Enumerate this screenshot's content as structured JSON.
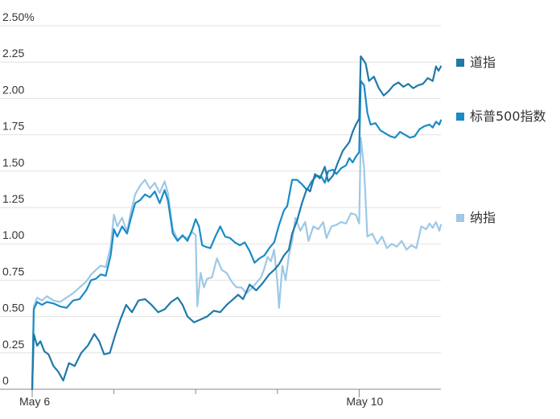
{
  "chart_data": {
    "type": "line",
    "ylim": [
      0,
      2.5
    ],
    "y_ticks": [
      {
        "value": 0,
        "label": "0"
      },
      {
        "value": 0.25,
        "label": "0.25"
      },
      {
        "value": 0.5,
        "label": "0.50"
      },
      {
        "value": 0.75,
        "label": "0.75"
      },
      {
        "value": 1.0,
        "label": "1.00"
      },
      {
        "value": 1.25,
        "label": "1.25"
      },
      {
        "value": 1.5,
        "label": "1.50"
      },
      {
        "value": 1.75,
        "label": "1.75"
      },
      {
        "value": 2.0,
        "label": "2.00"
      },
      {
        "value": 2.25,
        "label": "2.25"
      },
      {
        "value": 2.5,
        "label": "2.50%"
      }
    ],
    "x_axis": {
      "range": [
        0,
        5
      ],
      "labeled_ticks": [
        {
          "value": 0,
          "label": "May 6"
        },
        {
          "value": 4,
          "label": "May 10"
        }
      ],
      "minor_ticks": [
        1,
        2,
        3
      ]
    },
    "grid": "horizontal",
    "legend_position": "right",
    "series": [
      {
        "name": "道指",
        "color": "#1f7aa8",
        "points": [
          [
            0.0,
            0.0
          ],
          [
            0.02,
            0.38
          ],
          [
            0.06,
            0.3
          ],
          [
            0.1,
            0.33
          ],
          [
            0.15,
            0.26
          ],
          [
            0.2,
            0.24
          ],
          [
            0.26,
            0.16
          ],
          [
            0.32,
            0.12
          ],
          [
            0.38,
            0.06
          ],
          [
            0.45,
            0.18
          ],
          [
            0.52,
            0.16
          ],
          [
            0.6,
            0.25
          ],
          [
            0.68,
            0.3
          ],
          [
            0.76,
            0.38
          ],
          [
            0.82,
            0.33
          ],
          [
            0.88,
            0.24
          ],
          [
            0.95,
            0.25
          ],
          [
            1.02,
            0.38
          ],
          [
            1.08,
            0.48
          ],
          [
            1.15,
            0.58
          ],
          [
            1.22,
            0.53
          ],
          [
            1.3,
            0.61
          ],
          [
            1.38,
            0.62
          ],
          [
            1.46,
            0.58
          ],
          [
            1.54,
            0.53
          ],
          [
            1.62,
            0.55
          ],
          [
            1.7,
            0.6
          ],
          [
            1.78,
            0.63
          ],
          [
            1.84,
            0.58
          ],
          [
            1.9,
            0.5
          ],
          [
            1.98,
            0.46
          ],
          [
            2.06,
            0.48
          ],
          [
            2.14,
            0.5
          ],
          [
            2.22,
            0.54
          ],
          [
            2.3,
            0.53
          ],
          [
            2.38,
            0.58
          ],
          [
            2.46,
            0.62
          ],
          [
            2.52,
            0.65
          ],
          [
            2.58,
            0.62
          ],
          [
            2.66,
            0.72
          ],
          [
            2.74,
            0.68
          ],
          [
            2.82,
            0.73
          ],
          [
            2.9,
            0.79
          ],
          [
            2.96,
            0.82
          ],
          [
            3.02,
            0.86
          ],
          [
            3.08,
            0.92
          ],
          [
            3.14,
            0.96
          ],
          [
            3.18,
            1.07
          ],
          [
            3.24,
            1.16
          ],
          [
            3.3,
            1.28
          ],
          [
            3.36,
            1.38
          ],
          [
            3.4,
            1.36
          ],
          [
            3.46,
            1.48
          ],
          [
            3.52,
            1.45
          ],
          [
            3.58,
            1.53
          ],
          [
            3.62,
            1.43
          ],
          [
            3.68,
            1.47
          ],
          [
            3.74,
            1.56
          ],
          [
            3.8,
            1.64
          ],
          [
            3.88,
            1.7
          ],
          [
            3.92,
            1.77
          ],
          [
            3.96,
            1.82
          ],
          [
            4.0,
            1.86
          ],
          [
            4.02,
            2.29
          ],
          [
            4.08,
            2.24
          ],
          [
            4.12,
            2.12
          ],
          [
            4.18,
            2.15
          ],
          [
            4.24,
            2.07
          ],
          [
            4.3,
            2.02
          ],
          [
            4.36,
            2.05
          ],
          [
            4.42,
            2.09
          ],
          [
            4.48,
            2.11
          ],
          [
            4.54,
            2.08
          ],
          [
            4.6,
            2.1
          ],
          [
            4.66,
            2.07
          ],
          [
            4.72,
            2.09
          ],
          [
            4.78,
            2.1
          ],
          [
            4.84,
            2.14
          ],
          [
            4.9,
            2.12
          ],
          [
            4.94,
            2.22
          ],
          [
            4.97,
            2.19
          ],
          [
            5.0,
            2.22
          ]
        ]
      },
      {
        "name": "标普500指数",
        "color": "#1a8bc7",
        "points": [
          [
            0.0,
            0.0
          ],
          [
            0.02,
            0.55
          ],
          [
            0.06,
            0.6
          ],
          [
            0.12,
            0.58
          ],
          [
            0.18,
            0.6
          ],
          [
            0.26,
            0.59
          ],
          [
            0.34,
            0.57
          ],
          [
            0.42,
            0.56
          ],
          [
            0.5,
            0.61
          ],
          [
            0.58,
            0.62
          ],
          [
            0.66,
            0.68
          ],
          [
            0.72,
            0.75
          ],
          [
            0.78,
            0.76
          ],
          [
            0.84,
            0.79
          ],
          [
            0.9,
            0.78
          ],
          [
            0.96,
            0.92
          ],
          [
            1.0,
            1.1
          ],
          [
            1.04,
            1.05
          ],
          [
            1.1,
            1.12
          ],
          [
            1.16,
            1.07
          ],
          [
            1.2,
            1.16
          ],
          [
            1.26,
            1.28
          ],
          [
            1.32,
            1.3
          ],
          [
            1.38,
            1.34
          ],
          [
            1.44,
            1.32
          ],
          [
            1.5,
            1.36
          ],
          [
            1.56,
            1.28
          ],
          [
            1.62,
            1.37
          ],
          [
            1.66,
            1.3
          ],
          [
            1.72,
            1.07
          ],
          [
            1.78,
            1.02
          ],
          [
            1.84,
            1.06
          ],
          [
            1.9,
            1.02
          ],
          [
            1.96,
            1.1
          ],
          [
            2.0,
            1.17
          ],
          [
            2.04,
            1.12
          ],
          [
            2.08,
            0.99
          ],
          [
            2.12,
            0.98
          ],
          [
            2.18,
            0.97
          ],
          [
            2.24,
            1.05
          ],
          [
            2.3,
            1.12
          ],
          [
            2.36,
            1.05
          ],
          [
            2.42,
            1.04
          ],
          [
            2.48,
            1.01
          ],
          [
            2.54,
            0.99
          ],
          [
            2.6,
            1.01
          ],
          [
            2.66,
            0.95
          ],
          [
            2.72,
            0.87
          ],
          [
            2.78,
            0.9
          ],
          [
            2.84,
            0.92
          ],
          [
            2.9,
            0.97
          ],
          [
            2.96,
            1.01
          ],
          [
            3.02,
            1.13
          ],
          [
            3.08,
            1.23
          ],
          [
            3.12,
            1.26
          ],
          [
            3.18,
            1.44
          ],
          [
            3.24,
            1.44
          ],
          [
            3.3,
            1.41
          ],
          [
            3.36,
            1.37
          ],
          [
            3.42,
            1.43
          ],
          [
            3.48,
            1.47
          ],
          [
            3.54,
            1.46
          ],
          [
            3.58,
            1.42
          ],
          [
            3.62,
            1.5
          ],
          [
            3.68,
            1.51
          ],
          [
            3.72,
            1.48
          ],
          [
            3.78,
            1.52
          ],
          [
            3.84,
            1.54
          ],
          [
            3.88,
            1.59
          ],
          [
            3.92,
            1.56
          ],
          [
            3.96,
            1.6
          ],
          [
            4.0,
            1.63
          ],
          [
            4.02,
            2.12
          ],
          [
            4.06,
            2.09
          ],
          [
            4.1,
            1.9
          ],
          [
            4.14,
            1.82
          ],
          [
            4.2,
            1.83
          ],
          [
            4.26,
            1.78
          ],
          [
            4.32,
            1.76
          ],
          [
            4.38,
            1.74
          ],
          [
            4.44,
            1.73
          ],
          [
            4.5,
            1.77
          ],
          [
            4.56,
            1.75
          ],
          [
            4.62,
            1.73
          ],
          [
            4.68,
            1.74
          ],
          [
            4.74,
            1.79
          ],
          [
            4.8,
            1.81
          ],
          [
            4.86,
            1.82
          ],
          [
            4.9,
            1.8
          ],
          [
            4.94,
            1.84
          ],
          [
            4.98,
            1.82
          ],
          [
            5.0,
            1.85
          ]
        ]
      },
      {
        "name": "纳指",
        "color": "#9ec8e6",
        "points": [
          [
            0.0,
            0.0
          ],
          [
            0.02,
            0.57
          ],
          [
            0.06,
            0.63
          ],
          [
            0.12,
            0.61
          ],
          [
            0.18,
            0.64
          ],
          [
            0.26,
            0.61
          ],
          [
            0.34,
            0.6
          ],
          [
            0.42,
            0.63
          ],
          [
            0.5,
            0.66
          ],
          [
            0.58,
            0.7
          ],
          [
            0.66,
            0.74
          ],
          [
            0.72,
            0.79
          ],
          [
            0.78,
            0.82
          ],
          [
            0.84,
            0.85
          ],
          [
            0.9,
            0.84
          ],
          [
            0.96,
            0.98
          ],
          [
            1.0,
            1.2
          ],
          [
            1.04,
            1.12
          ],
          [
            1.1,
            1.18
          ],
          [
            1.16,
            1.08
          ],
          [
            1.2,
            1.2
          ],
          [
            1.26,
            1.34
          ],
          [
            1.32,
            1.4
          ],
          [
            1.38,
            1.44
          ],
          [
            1.44,
            1.38
          ],
          [
            1.5,
            1.42
          ],
          [
            1.56,
            1.35
          ],
          [
            1.62,
            1.43
          ],
          [
            1.66,
            1.35
          ],
          [
            1.72,
            1.1
          ],
          [
            1.78,
            1.03
          ],
          [
            1.84,
            1.05
          ],
          [
            1.9,
            1.04
          ],
          [
            1.96,
            1.08
          ],
          [
            2.0,
            1.06
          ],
          [
            2.02,
            0.57
          ],
          [
            2.06,
            0.8
          ],
          [
            2.1,
            0.7
          ],
          [
            2.14,
            0.76
          ],
          [
            2.2,
            0.77
          ],
          [
            2.26,
            0.9
          ],
          [
            2.32,
            0.82
          ],
          [
            2.38,
            0.8
          ],
          [
            2.44,
            0.74
          ],
          [
            2.5,
            0.7
          ],
          [
            2.56,
            0.7
          ],
          [
            2.62,
            0.66
          ],
          [
            2.68,
            0.69
          ],
          [
            2.74,
            0.73
          ],
          [
            2.8,
            0.77
          ],
          [
            2.84,
            0.83
          ],
          [
            2.88,
            0.91
          ],
          [
            2.92,
            0.88
          ],
          [
            2.96,
            0.96
          ],
          [
            3.0,
            0.73
          ],
          [
            3.02,
            0.56
          ],
          [
            3.06,
            0.85
          ],
          [
            3.1,
            0.75
          ],
          [
            3.14,
            0.92
          ],
          [
            3.18,
            1.02
          ],
          [
            3.22,
            1.18
          ],
          [
            3.28,
            1.09
          ],
          [
            3.34,
            1.15
          ],
          [
            3.38,
            1.02
          ],
          [
            3.44,
            1.12
          ],
          [
            3.5,
            1.1
          ],
          [
            3.56,
            1.15
          ],
          [
            3.6,
            1.04
          ],
          [
            3.66,
            1.12
          ],
          [
            3.72,
            1.13
          ],
          [
            3.78,
            1.15
          ],
          [
            3.84,
            1.14
          ],
          [
            3.9,
            1.21
          ],
          [
            3.96,
            1.2
          ],
          [
            4.0,
            1.14
          ],
          [
            4.02,
            1.73
          ],
          [
            4.06,
            1.52
          ],
          [
            4.1,
            1.05
          ],
          [
            4.16,
            1.07
          ],
          [
            4.22,
            1.0
          ],
          [
            4.28,
            1.05
          ],
          [
            4.34,
            0.97
          ],
          [
            4.4,
            1.0
          ],
          [
            4.46,
            0.98
          ],
          [
            4.52,
            1.02
          ],
          [
            4.58,
            0.96
          ],
          [
            4.64,
            0.99
          ],
          [
            4.7,
            0.97
          ],
          [
            4.76,
            1.12
          ],
          [
            4.82,
            1.1
          ],
          [
            4.86,
            1.14
          ],
          [
            4.9,
            1.11
          ],
          [
            4.94,
            1.15
          ],
          [
            4.98,
            1.09
          ],
          [
            5.0,
            1.13
          ]
        ]
      }
    ]
  }
}
